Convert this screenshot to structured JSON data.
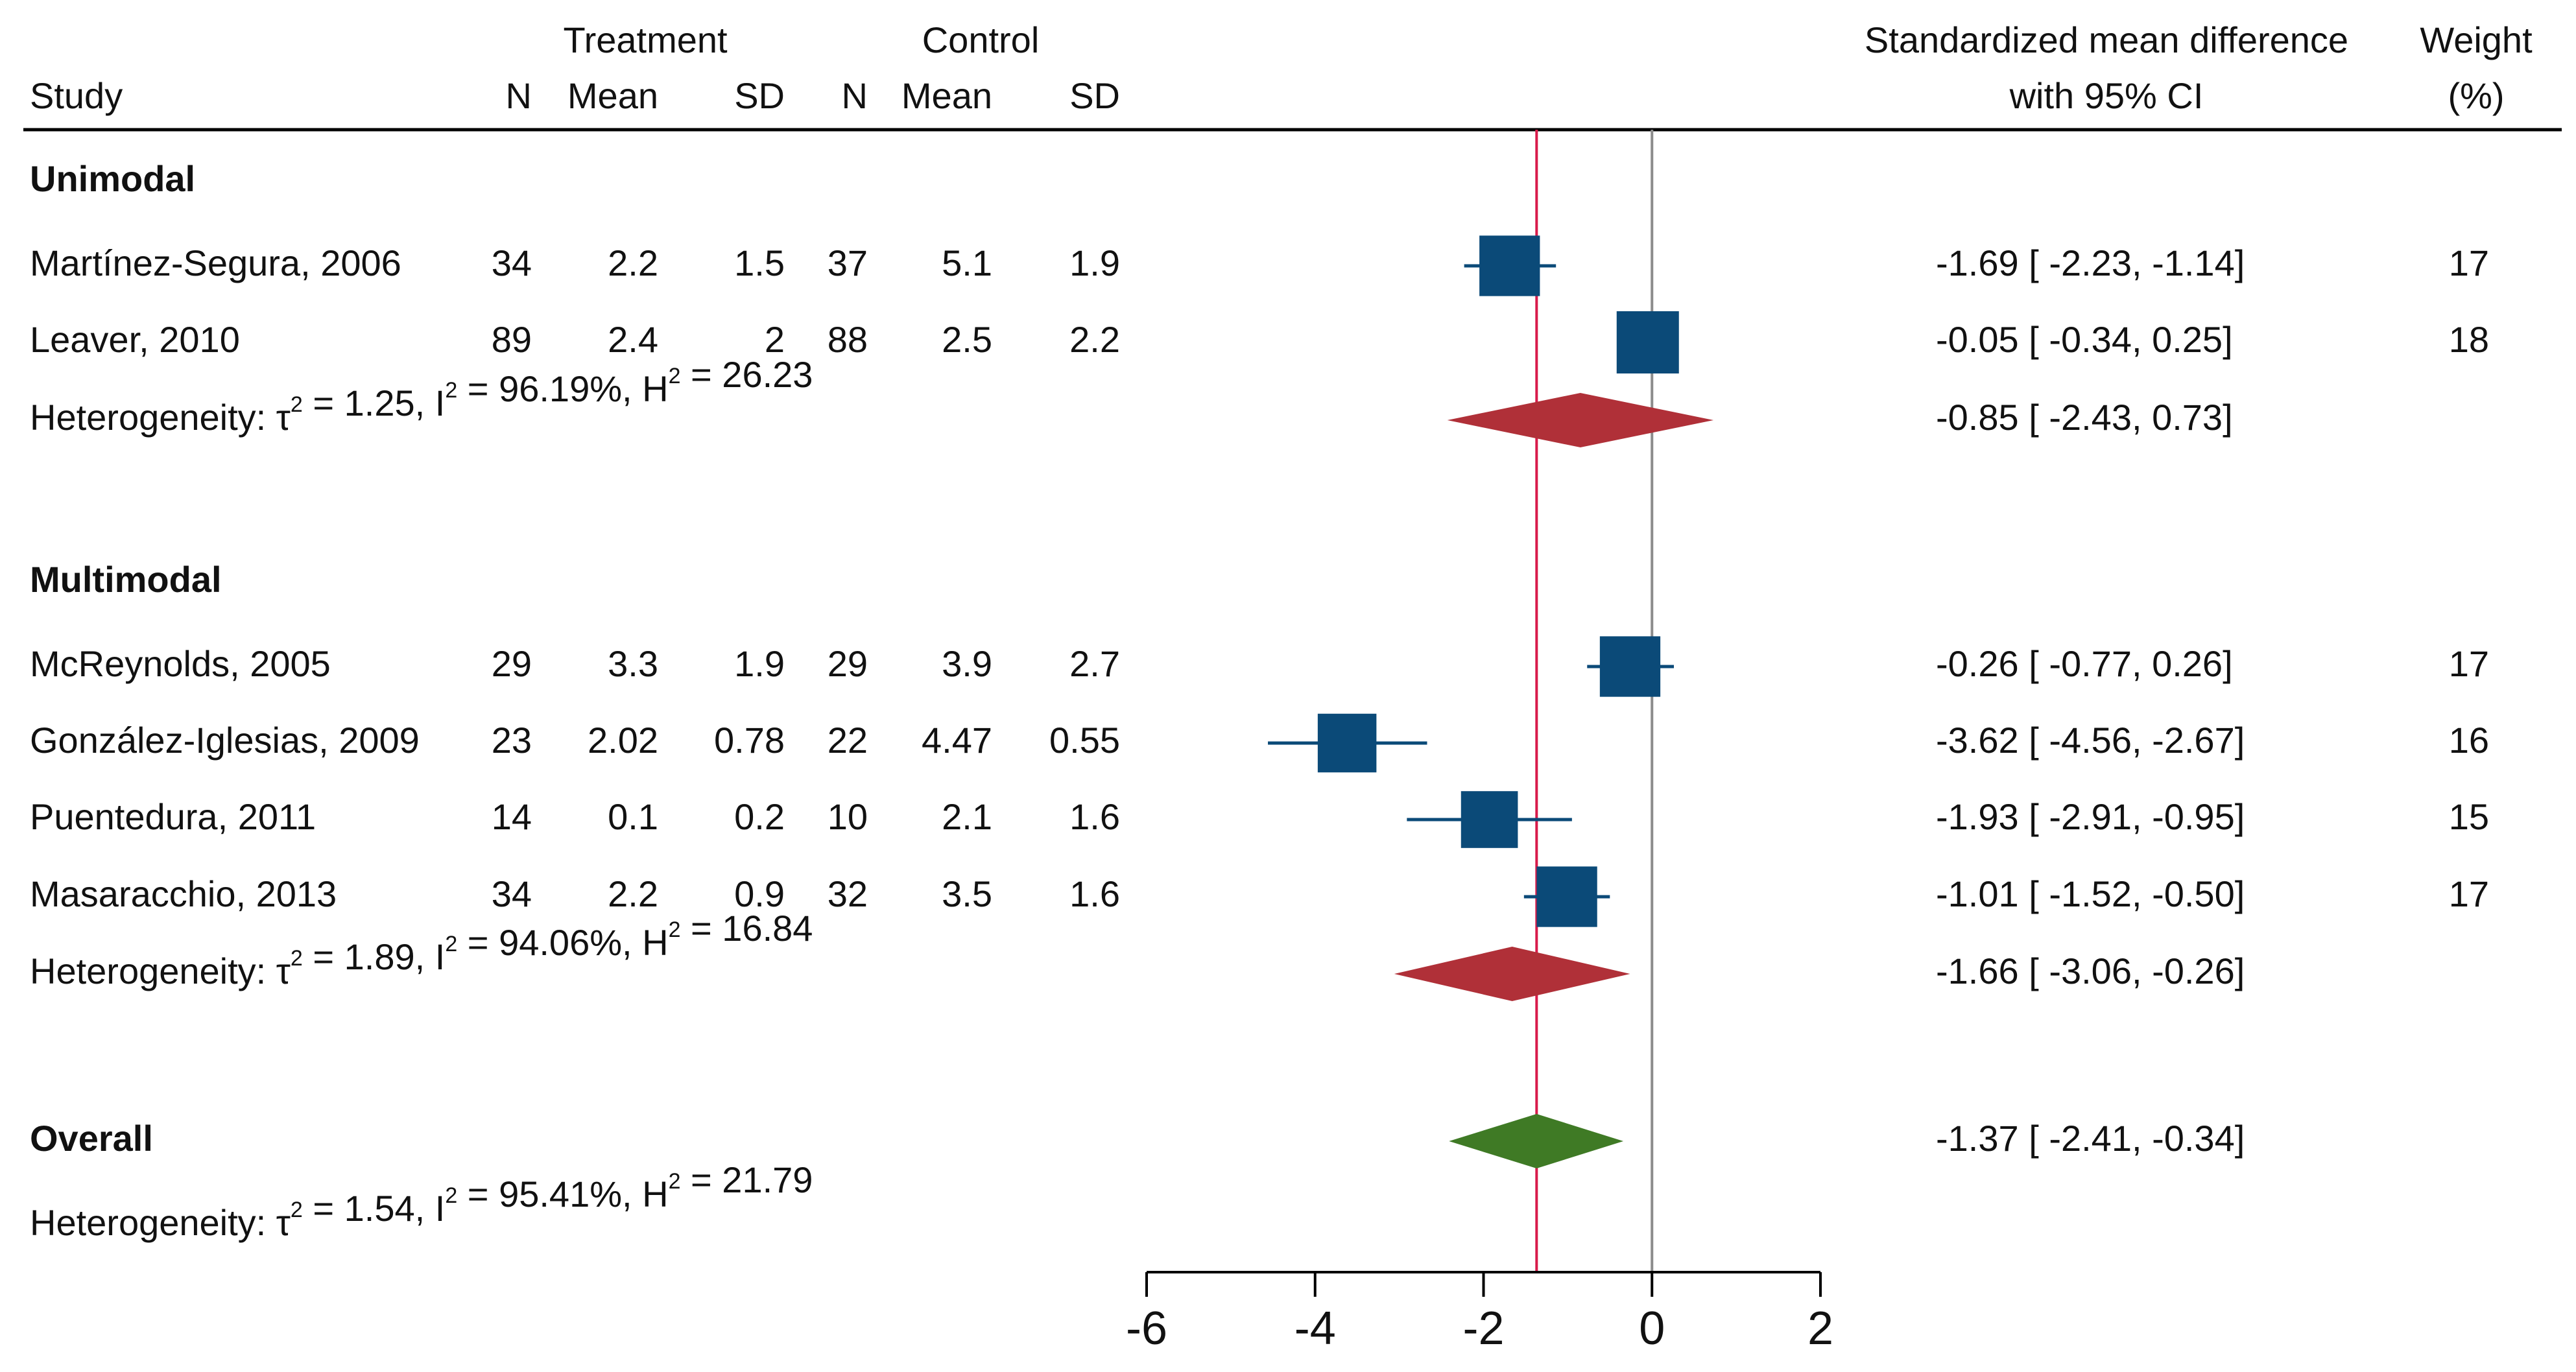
{
  "chart_data": {
    "type": "forest",
    "headers": {
      "study": "Study",
      "treatment": "Treatment",
      "control": "Control",
      "n": "N",
      "mean": "Mean",
      "sd": "SD",
      "effect_line1": "Standardized mean difference",
      "effect_line2": "with 95% CI",
      "weight_line1": "Weight",
      "weight_line2": "(%)"
    },
    "groups": [
      {
        "name": "Unimodal",
        "studies": [
          {
            "label": "Martínez-Segura, 2006",
            "t_n": "34",
            "t_mean": "2.2",
            "t_sd": "1.5",
            "c_n": "37",
            "c_mean": "5.1",
            "c_sd": "1.9",
            "smd": -1.69,
            "lo": -2.23,
            "hi": -1.14,
            "ci_text": "-1.69 [ -2.23,  -1.14]",
            "weight": "17"
          },
          {
            "label": "Leaver, 2010",
            "t_n": "89",
            "t_mean": "2.4",
            "t_sd": "2",
            "c_n": "88",
            "c_mean": "2.5",
            "c_sd": "2.2",
            "smd": -0.05,
            "lo": -0.34,
            "hi": 0.25,
            "ci_text": "-0.05 [ -0.34,   0.25]",
            "weight": "18"
          }
        ],
        "heterogeneity": {
          "tau2": "1.25",
          "i2": "96.19%",
          "h2": "26.23"
        },
        "summary": {
          "smd": -0.85,
          "lo": -2.43,
          "hi": 0.73,
          "ci_text": "-0.85 [ -2.43,   0.73]"
        }
      },
      {
        "name": "Multimodal",
        "studies": [
          {
            "label": "McReynolds, 2005",
            "t_n": "29",
            "t_mean": "3.3",
            "t_sd": "1.9",
            "c_n": "29",
            "c_mean": "3.9",
            "c_sd": "2.7",
            "smd": -0.26,
            "lo": -0.77,
            "hi": 0.26,
            "ci_text": "-0.26 [ -0.77,   0.26]",
            "weight": "17"
          },
          {
            "label": "González-Iglesias, 2009",
            "t_n": "23",
            "t_mean": "2.02",
            "t_sd": "0.78",
            "c_n": "22",
            "c_mean": "4.47",
            "c_sd": "0.55",
            "smd": -3.62,
            "lo": -4.56,
            "hi": -2.67,
            "ci_text": "-3.62 [ -4.56,  -2.67]",
            "weight": "16"
          },
          {
            "label": "Puentedura, 2011",
            "t_n": "14",
            "t_mean": "0.1",
            "t_sd": "0.2",
            "c_n": "10",
            "c_mean": "2.1",
            "c_sd": "1.6",
            "smd": -1.93,
            "lo": -2.91,
            "hi": -0.95,
            "ci_text": "-1.93 [ -2.91,  -0.95]",
            "weight": "15"
          },
          {
            "label": "Masaracchio, 2013",
            "t_n": "34",
            "t_mean": "2.2",
            "t_sd": "0.9",
            "c_n": "32",
            "c_mean": "3.5",
            "c_sd": "1.6",
            "smd": -1.01,
            "lo": -1.52,
            "hi": -0.5,
            "ci_text": "-1.01 [ -1.52,  -0.50]",
            "weight": "17"
          }
        ],
        "heterogeneity": {
          "tau2": "1.89",
          "i2": "94.06%",
          "h2": "16.84"
        },
        "summary": {
          "smd": -1.66,
          "lo": -3.06,
          "hi": -0.26,
          "ci_text": "-1.66 [ -3.06,  -0.26]"
        }
      }
    ],
    "overall": {
      "name": "Overall",
      "smd": -1.37,
      "lo": -2.41,
      "hi": -0.34,
      "ci_text": "-1.37 [ -2.41,  -0.34]",
      "heterogeneity": {
        "tau2": "1.54",
        "i2": "95.41%",
        "h2": "21.79"
      }
    },
    "heterogeneity_labels": {
      "prefix": "Heterogeneity: ",
      "tau": "τ",
      "i": "I",
      "h": "H",
      "sup": "2"
    },
    "x_axis": {
      "min": -6,
      "max": 2,
      "ticks": [
        -6,
        -4,
        -2,
        0,
        2
      ]
    },
    "reference_lines": {
      "null": 0,
      "overall": -1.37
    },
    "colors": {
      "study_marker": "#0b4a78",
      "subgroup_diamond": "#b03038",
      "overall_diamond": "#3f7a25",
      "overall_line": "#d81b4a",
      "null_line": "#8c8c8c",
      "text": "#111111"
    }
  }
}
